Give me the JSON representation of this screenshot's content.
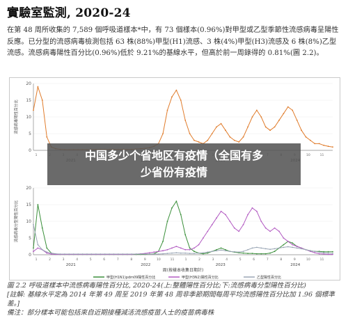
{
  "header": {
    "title": "實驗室監測, 2020-24",
    "paragraph": "在第 48 周所收集的 7,589 個呼吸道樣本*中，有 73 個樣本(0.96%)對甲型或乙型季節性流感病毒呈陽性反應。已分型的流感病毒檢測包括 63 株(88%)甲型(H1)流感、3 株(4%)甲型(H3)流感及 6 株(8%)乙型流感。流感病毒陽性百分比(0.96%)低於 9.21%的基線水平，但高於前一周錄得的 0.81%(圖 2.2)。"
  },
  "overlay": {
    "line1": "中国多少个省地区有疫情（全国有多",
    "line2": "少省份有疫情"
  },
  "figure": {
    "caption": "圖 2.2  呼吸道樣本中流感病毒陽性百分比, 2020-24(上:整體陽性百分比;下:流感病毒分型陽性百分比)",
    "note1": "[註解: 基線水平定為 2014 年第 49 周至 2019 年第 48 周非季節期間每周平均流感陽性百分比加 1.96 個標準差。]",
    "note2": "備注：部分樣本可能包括來自近期接種減活流感疫苗人士的疫苗病毒株",
    "year_labels": [
      "2021",
      "2022",
      "2023",
      "2024"
    ],
    "week_ticks": [
      "1",
      "2",
      "3",
      "4",
      "5",
      "6",
      "7",
      "8",
      "9",
      "10",
      "11"
    ],
    "xlabel": "周(按樣本收集日期計)"
  },
  "chart_data": [
    {
      "type": "line",
      "ylabel": "流感病毒陽性百分比",
      "ylim": [
        0,
        20
      ],
      "yticks": [
        0,
        5,
        10,
        15,
        20
      ],
      "series": [
        {
          "color": "#e07b2a",
          "values": [
            12,
            19,
            15,
            4,
            1,
            0.5,
            0.3,
            0.2,
            0.2,
            0.2,
            0.2,
            0.2,
            0.2,
            0.2,
            0.3,
            0.3,
            0.3,
            0.3,
            0.3,
            0.3,
            0.3,
            0.3,
            0.3,
            0.4,
            0.5,
            0.6,
            0.8,
            1.2,
            2,
            5,
            12,
            16,
            18,
            15,
            9,
            5,
            3,
            2.5,
            2,
            3,
            5,
            7,
            8,
            6,
            4,
            3,
            2.5,
            4,
            7,
            10,
            12,
            10,
            7,
            6,
            7,
            9,
            11,
            13,
            12,
            9,
            6,
            4,
            3,
            2,
            2,
            1.5,
            1.2,
            1
          ]
        }
      ]
    },
    {
      "type": "line",
      "ylabel": "流感病毒分型陽性百分比",
      "ylim": [
        0,
        20
      ],
      "yticks": [
        0,
        5,
        10,
        15,
        20
      ],
      "series": [
        {
          "name": "甲型(H1N1)pdm09陽性百分比",
          "color": "#3a8f3a",
          "values": [
            2,
            15,
            8,
            2,
            0.5,
            0.2,
            0.1,
            0.1,
            0.1,
            0.1,
            0.1,
            0.1,
            0.1,
            0.1,
            0.1,
            0.1,
            0.1,
            0.1,
            0.1,
            0.1,
            0.1,
            0.1,
            0.1,
            0.1,
            0.1,
            0.1,
            0.2,
            0.3,
            1,
            4,
            10,
            14,
            16,
            12,
            6,
            2,
            1,
            0.5,
            0.3,
            0.5,
            1,
            1.5,
            2,
            1.5,
            1,
            0.8,
            0.6,
            0.5,
            0.4,
            0.4,
            0.3,
            0.3,
            0.3,
            0.5,
            1,
            2,
            3,
            4,
            3.5,
            2.5,
            2,
            1.5,
            1.2,
            1,
            1,
            0.9,
            0.9,
            0.9
          ]
        },
        {
          "name": "甲型(H3N2)陽性百分比",
          "color": "#b25ac2",
          "values": [
            1,
            2,
            1.5,
            0.5,
            0.2,
            0.1,
            0.1,
            0.1,
            0.1,
            0.1,
            0.1,
            0.1,
            0.1,
            0.1,
            0.1,
            0.1,
            0.1,
            0.1,
            0.1,
            0.1,
            0.1,
            0.1,
            0.1,
            0.2,
            0.3,
            0.4,
            0.6,
            0.8,
            1,
            1.2,
            1.5,
            2,
            2.5,
            2,
            1.5,
            1.5,
            2,
            3,
            5,
            7,
            9,
            11,
            13,
            12,
            10,
            8,
            7,
            9,
            12,
            14,
            13,
            10,
            8,
            7,
            8,
            7,
            5,
            4,
            3,
            2.5,
            2,
            1.5,
            1,
            0.6,
            0.3,
            0.2,
            0.1,
            0.1
          ]
        },
        {
          "name": "乙型陽性百分比",
          "color": "#9aa6b5",
          "values": [
            9,
            3,
            1.5,
            0.8,
            0.5,
            0.3,
            0.2,
            0.2,
            0.2,
            0.2,
            0.2,
            0.2,
            0.2,
            0.2,
            0.2,
            0.2,
            0.2,
            0.2,
            0.2,
            0.2,
            0.2,
            0.2,
            0.2,
            0.2,
            0.2,
            0.2,
            0.2,
            0.2,
            0.2,
            0.3,
            0.4,
            0.5,
            0.6,
            0.5,
            0.5,
            0.4,
            0.4,
            0.5,
            0.6,
            0.8,
            1,
            1.2,
            1.4,
            1.2,
            1,
            0.9,
            0.8,
            1,
            1.5,
            2,
            2.2,
            2,
            1.8,
            1.6,
            1.8,
            2,
            2.2,
            2.4,
            2.2,
            2,
            1.8,
            1.5,
            1.2,
            1,
            0.8,
            0.6,
            0.5,
            0.4
          ]
        }
      ]
    }
  ]
}
